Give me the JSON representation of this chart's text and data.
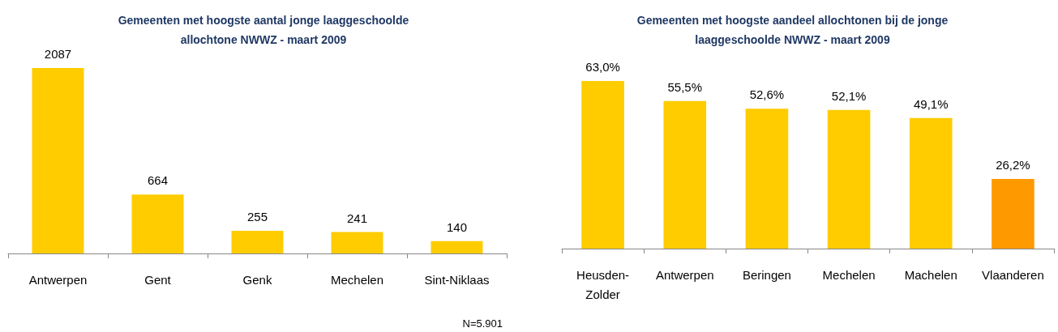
{
  "chart_data": [
    {
      "type": "bar",
      "title": "Gemeenten met hoogste aantal jonge laaggeschoolde\nallochtone NWWZ - maart 2009",
      "categories": [
        "Antwerpen",
        "Gent",
        "Genk",
        "Mechelen",
        "Sint-Niklaas"
      ],
      "values": [
        2087,
        664,
        255,
        241,
        140
      ],
      "color": "#ffcc00",
      "data_labels": true,
      "annotations": [
        "N=5.901"
      ]
    },
    {
      "type": "bar",
      "title": "Gemeenten met hoogste aandeel allochtonen bij de jonge\nlaaggeschoolde NWWZ - maart 2009",
      "categories": [
        "Heusden-\nZolder",
        "Antwerpen",
        "Beringen",
        "Mechelen",
        "Machelen",
        "Vlaanderen"
      ],
      "values": [
        63.0,
        55.5,
        52.6,
        52.1,
        49.1,
        26.2
      ],
      "value_labels": [
        "63,0%",
        "55,5%",
        "52,6%",
        "52,1%",
        "49,1%",
        "26,2%"
      ],
      "colors": [
        "#ffcc00",
        "#ffcc00",
        "#ffcc00",
        "#ffcc00",
        "#ffcc00",
        "#ff9900"
      ]
    }
  ]
}
